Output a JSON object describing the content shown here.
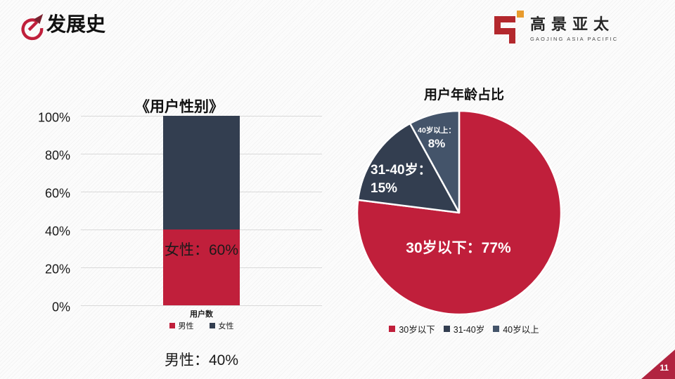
{
  "slide": {
    "header": {
      "title": "发展史"
    },
    "logo": {
      "name": "高景亚太",
      "subtitle": "GAOJING ASIA PACIFIC"
    },
    "page_number": "11"
  },
  "colors": {
    "accent_red": "#C01F3B",
    "navy": "#333E50",
    "slate": "#44546A",
    "logo_red": "#B3282D",
    "logo_gold": "#E89B2D",
    "corner_red": "#B12440",
    "gridline": "#D9D9D9",
    "arrowhead_dark_red": "#7A2230"
  },
  "chart_data": [
    {
      "type": "bar",
      "subtype": "stacked-column-100",
      "title": "《用户性别》",
      "categories": [
        "用户数"
      ],
      "series": [
        {
          "name": "男性",
          "values": [
            40
          ],
          "color": "#C01F3B",
          "data_label": "男性：40%"
        },
        {
          "name": "女性",
          "values": [
            60
          ],
          "color": "#333E50",
          "data_label": "女性：60%"
        }
      ],
      "ylim": [
        0,
        100
      ],
      "yticks": [
        "0%",
        "20%",
        "40%",
        "60%",
        "80%",
        "100%"
      ],
      "grid": true,
      "legend_position": "bottom"
    },
    {
      "type": "pie",
      "title": "用户年龄占比",
      "slices": [
        {
          "name": "30岁以下",
          "value": 77,
          "color": "#C01F3B",
          "label": "30岁以下：77%"
        },
        {
          "name": "31-40岁",
          "value": 15,
          "color": "#333E50",
          "label_line1": "31-40岁：",
          "label_line2": "15%"
        },
        {
          "name": "40岁以上",
          "value": 8,
          "color": "#44546A",
          "label_line1": "40岁以上：",
          "label_line2": "8%"
        }
      ],
      "start_angle": "12-oclock",
      "direction": "clockwise",
      "legend_position": "bottom"
    }
  ]
}
